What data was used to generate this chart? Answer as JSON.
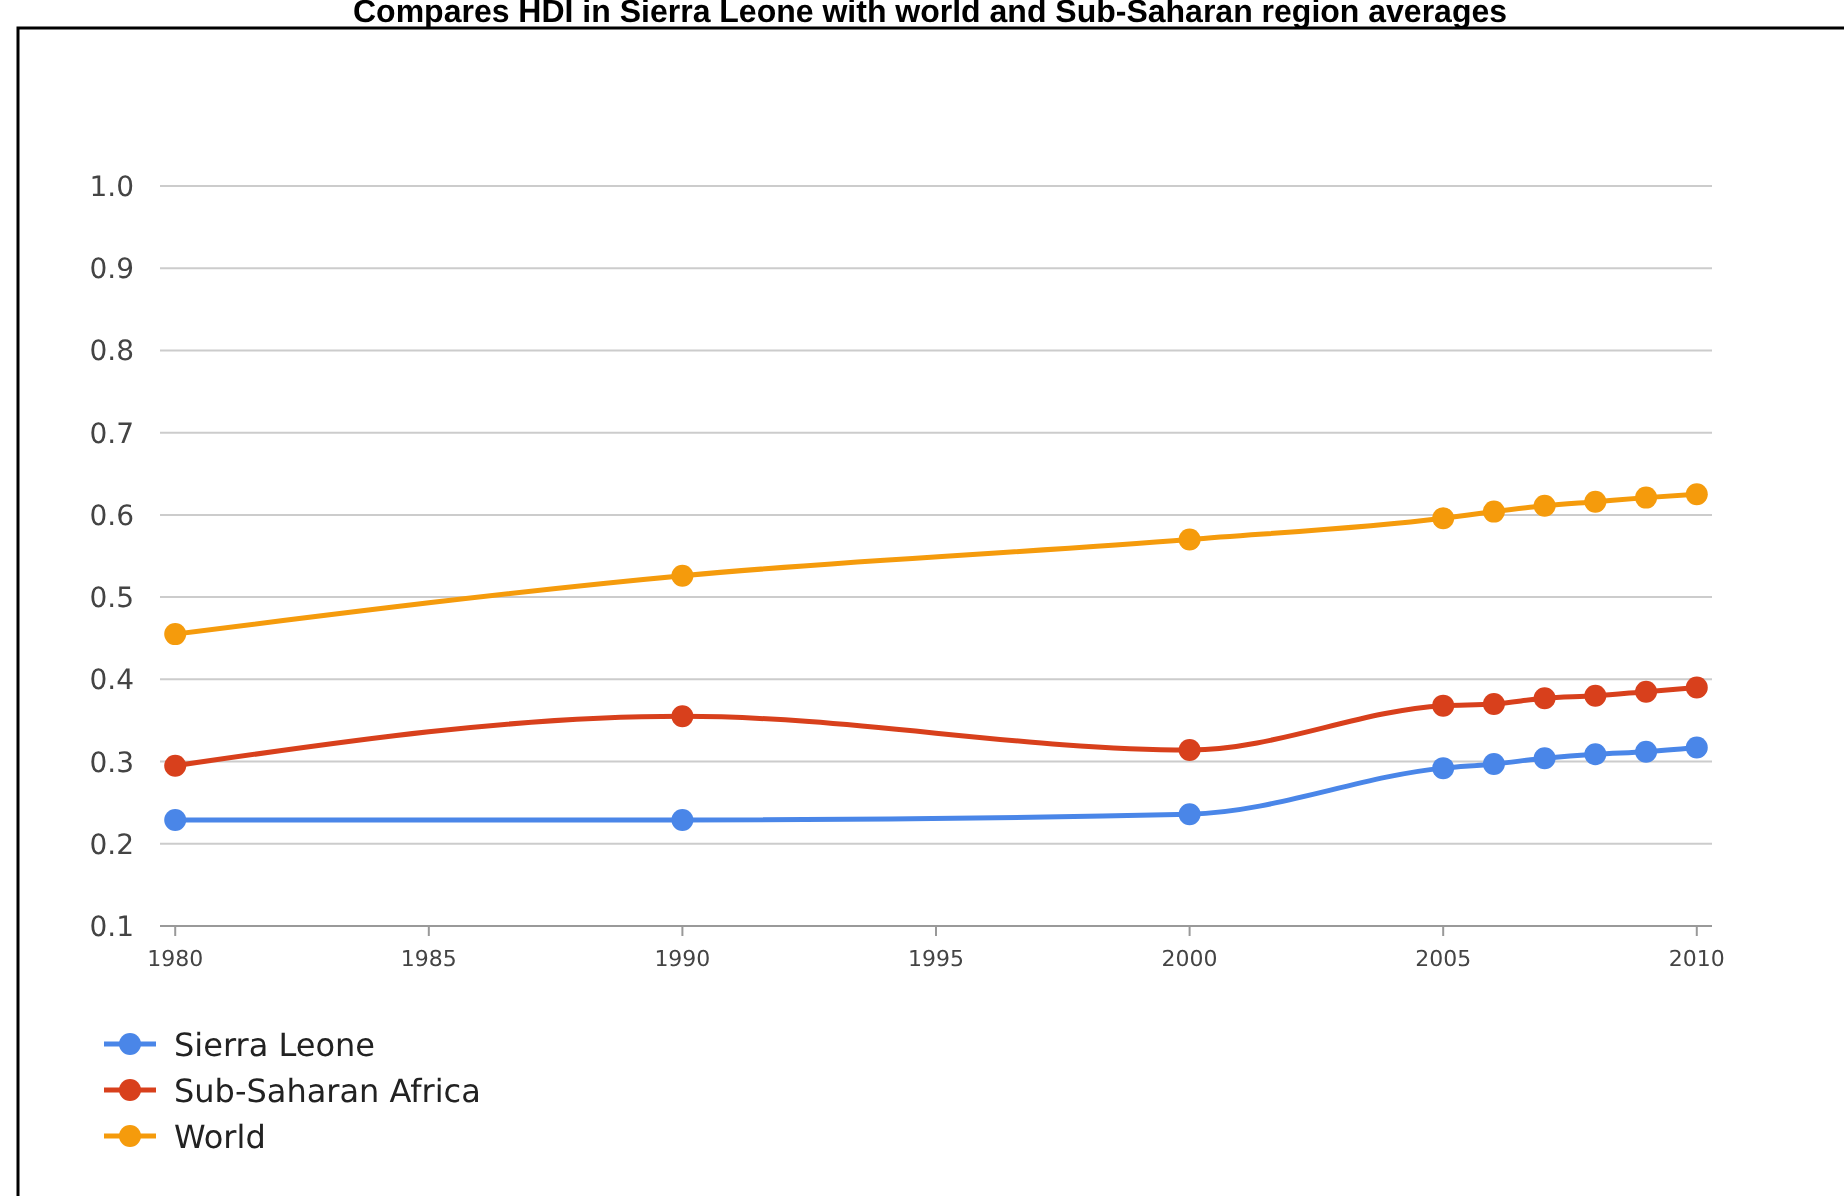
{
  "chart_data": {
    "type": "line",
    "title": "Compares HDI in Sierra Leone with world and Sub-Saharan region averages",
    "x": [
      1980,
      1990,
      2000,
      2005,
      2006,
      2007,
      2008,
      2009,
      2010
    ],
    "series": [
      {
        "name": "Sierra Leone",
        "color": "#4a86e8",
        "values": [
          0.229,
          0.229,
          0.236,
          0.292,
          0.297,
          0.304,
          0.309,
          0.312,
          0.317
        ]
      },
      {
        "name": "Sub-Saharan Africa",
        "color": "#d8401c",
        "values": [
          0.295,
          0.355,
          0.314,
          0.368,
          0.37,
          0.377,
          0.38,
          0.385,
          0.39
        ]
      },
      {
        "name": "World",
        "color": "#f59b0c",
        "values": [
          0.455,
          0.526,
          0.57,
          0.596,
          0.604,
          0.611,
          0.616,
          0.621,
          0.625
        ]
      }
    ],
    "xlim": [
      1979.7,
      2010.3
    ],
    "xticks": [
      1980,
      1985,
      1990,
      1995,
      2000,
      2005,
      2010
    ],
    "ylim": [
      0.1,
      1.0
    ],
    "yticks": [
      {
        "value": 0.1,
        "label": "0.1"
      },
      {
        "value": 0.2,
        "label": "0.2"
      },
      {
        "value": 0.3,
        "label": "0.3"
      },
      {
        "value": 0.4,
        "label": "0.4"
      },
      {
        "value": 0.5,
        "label": "0.5"
      },
      {
        "value": 0.6,
        "label": "0.6"
      },
      {
        "value": 0.7,
        "label": "0.7"
      },
      {
        "value": 0.8,
        "label": "0.8"
      },
      {
        "value": 0.9,
        "label": "0.9"
      },
      {
        "value": 1.0,
        "label": "1.0"
      }
    ],
    "grid": "y",
    "legend": "bottom left",
    "marker": "circle",
    "line_style": "solid"
  }
}
